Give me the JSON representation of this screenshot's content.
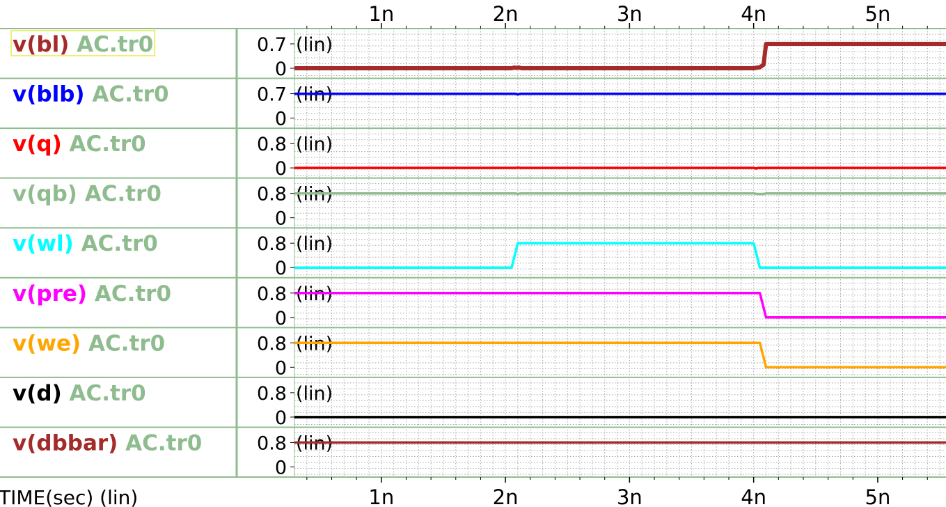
{
  "window": {
    "title": ""
  },
  "x_axis": {
    "label": "TIME(sec) (lin)"
  },
  "colors": {
    "frame": "#8fbc8f",
    "grid": "#a8a8a8",
    "plot_bg": "#ffffff",
    "selected_border": "#e8e84a"
  },
  "chart_data": {
    "type": "line",
    "title": "",
    "xlabel": "TIME(sec) (lin)",
    "xlim": [
      0.3,
      5.55
    ],
    "x_unit": "ns",
    "x_ticks": [
      {
        "value": 1,
        "label": "1n"
      },
      {
        "value": 2,
        "label": "2n"
      },
      {
        "value": 3,
        "label": "3n"
      },
      {
        "value": 4,
        "label": "4n"
      },
      {
        "value": 5,
        "label": "5n"
      }
    ],
    "grid": true,
    "panels": [
      {
        "signal": "v(bl)",
        "file": "AC.tr0",
        "color": "#a52a2a",
        "selected": true,
        "ylim": [
          -0.05,
          0.7
        ],
        "y_ticks": [
          "0.7",
          "0"
        ],
        "scale": "(lin)",
        "points": [
          [
            0.3,
            0
          ],
          [
            2.05,
            0
          ],
          [
            2.07,
            0.02
          ],
          [
            2.09,
            0.01
          ],
          [
            2.11,
            0.02
          ],
          [
            2.13,
            0
          ],
          [
            4.0,
            0
          ],
          [
            4.05,
            0.03
          ],
          [
            4.08,
            0.1
          ],
          [
            4.1,
            0.7
          ],
          [
            5.55,
            0.7
          ]
        ]
      },
      {
        "signal": "v(blb)",
        "file": "AC.tr0",
        "color": "#0000ff",
        "selected": false,
        "ylim": [
          -0.05,
          0.7
        ],
        "y_ticks": [
          "0.7",
          "0"
        ],
        "scale": "(lin)",
        "points": [
          [
            0.3,
            0.7
          ],
          [
            2.08,
            0.7
          ],
          [
            2.1,
            0.68
          ],
          [
            2.12,
            0.7
          ],
          [
            5.55,
            0.7
          ]
        ]
      },
      {
        "signal": "v(q)",
        "file": "AC.tr0",
        "color": "#ff0000",
        "selected": false,
        "ylim": [
          -0.05,
          0.8
        ],
        "y_ticks": [
          "0.8",
          "0"
        ],
        "scale": "(lin)",
        "points": [
          [
            0.3,
            0
          ],
          [
            2.08,
            0
          ],
          [
            2.1,
            0.01
          ],
          [
            2.12,
            0
          ],
          [
            4.0,
            0
          ],
          [
            4.02,
            -0.02
          ],
          [
            4.04,
            0
          ],
          [
            5.55,
            0
          ]
        ]
      },
      {
        "signal": "v(qb)",
        "file": "AC.tr0",
        "color": "#8fbc8f",
        "selected": false,
        "ylim": [
          -0.05,
          0.8
        ],
        "y_ticks": [
          "0.8",
          "0"
        ],
        "scale": "(lin)",
        "points": [
          [
            0.3,
            0.8
          ],
          [
            2.08,
            0.8
          ],
          [
            2.1,
            0.78
          ],
          [
            2.12,
            0.8
          ],
          [
            4.0,
            0.8
          ],
          [
            4.03,
            0.78
          ],
          [
            4.08,
            0.78
          ],
          [
            4.1,
            0.8
          ],
          [
            5.55,
            0.8
          ]
        ]
      },
      {
        "signal": "v(wl)",
        "file": "AC.tr0",
        "color": "#00ffff",
        "selected": false,
        "ylim": [
          -0.05,
          0.8
        ],
        "y_ticks": [
          "0.8",
          "0"
        ],
        "scale": "(lin)",
        "points": [
          [
            0.3,
            0
          ],
          [
            2.05,
            0
          ],
          [
            2.1,
            0.8
          ],
          [
            4.0,
            0.8
          ],
          [
            4.05,
            0
          ],
          [
            5.55,
            0
          ]
        ]
      },
      {
        "signal": "v(pre)",
        "file": "AC.tr0",
        "color": "#ff00ff",
        "selected": false,
        "ylim": [
          -0.05,
          0.8
        ],
        "y_ticks": [
          "0.8",
          "0"
        ],
        "scale": "(lin)",
        "points": [
          [
            0.3,
            0.8
          ],
          [
            4.05,
            0.8
          ],
          [
            4.1,
            0
          ],
          [
            5.55,
            0
          ]
        ]
      },
      {
        "signal": "v(we)",
        "file": "AC.tr0",
        "color": "#ffa500",
        "selected": false,
        "ylim": [
          -0.05,
          0.8
        ],
        "y_ticks": [
          "0.8",
          "0"
        ],
        "scale": "(lin)",
        "points": [
          [
            0.3,
            0.8
          ],
          [
            4.05,
            0.8
          ],
          [
            4.1,
            0
          ],
          [
            5.55,
            0
          ]
        ]
      },
      {
        "signal": "v(d)",
        "file": "AC.tr0",
        "color": "#000000",
        "selected": false,
        "ylim": [
          -0.05,
          0.8
        ],
        "y_ticks": [
          "0.8",
          "0"
        ],
        "scale": "(lin)",
        "points": [
          [
            0.3,
            0
          ],
          [
            5.55,
            0
          ]
        ]
      },
      {
        "signal": "v(dbbar)",
        "file": "AC.tr0",
        "color": "#a52a2a",
        "selected": false,
        "ylim": [
          -0.05,
          0.8
        ],
        "y_ticks": [
          "0.8",
          "0"
        ],
        "scale": "(lin)",
        "points": [
          [
            0.3,
            0.8
          ],
          [
            5.55,
            0.8
          ]
        ]
      }
    ]
  }
}
